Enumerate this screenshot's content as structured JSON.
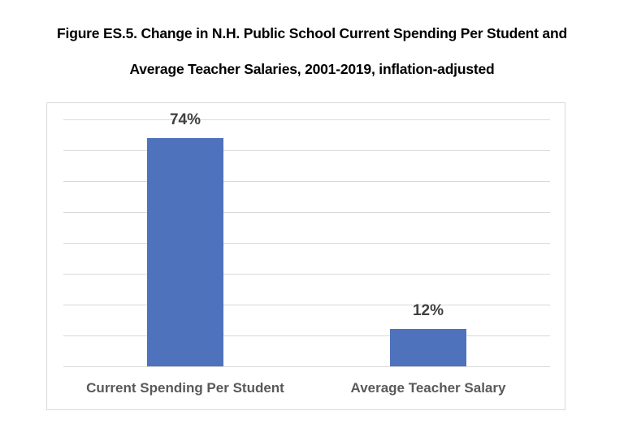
{
  "title_line1": "Figure ES.5.  Change in N.H. Public School Current Spending Per Student and",
  "title_line2": "Average Teacher Salaries, 2001-2019, inflation-adjusted",
  "colors": {
    "bar": "#4f72bd",
    "grid": "#d9d9d9",
    "label": "#404040",
    "category": "#595959"
  },
  "chart_data": {
    "type": "bar",
    "title": "Figure ES.5. Change in N.H. Public School Current Spending Per Student and Average Teacher Salaries, 2001-2019, inflation-adjusted",
    "categories": [
      "Current Spending Per Student",
      "Average Teacher Salary"
    ],
    "values": [
      74,
      12
    ],
    "data_labels": [
      "74%",
      "12%"
    ],
    "xlabel": "",
    "ylabel": "",
    "ylim": [
      0,
      80
    ],
    "grid": true,
    "gridline_step": 10,
    "y_axis_visible": false,
    "legend": "none"
  }
}
